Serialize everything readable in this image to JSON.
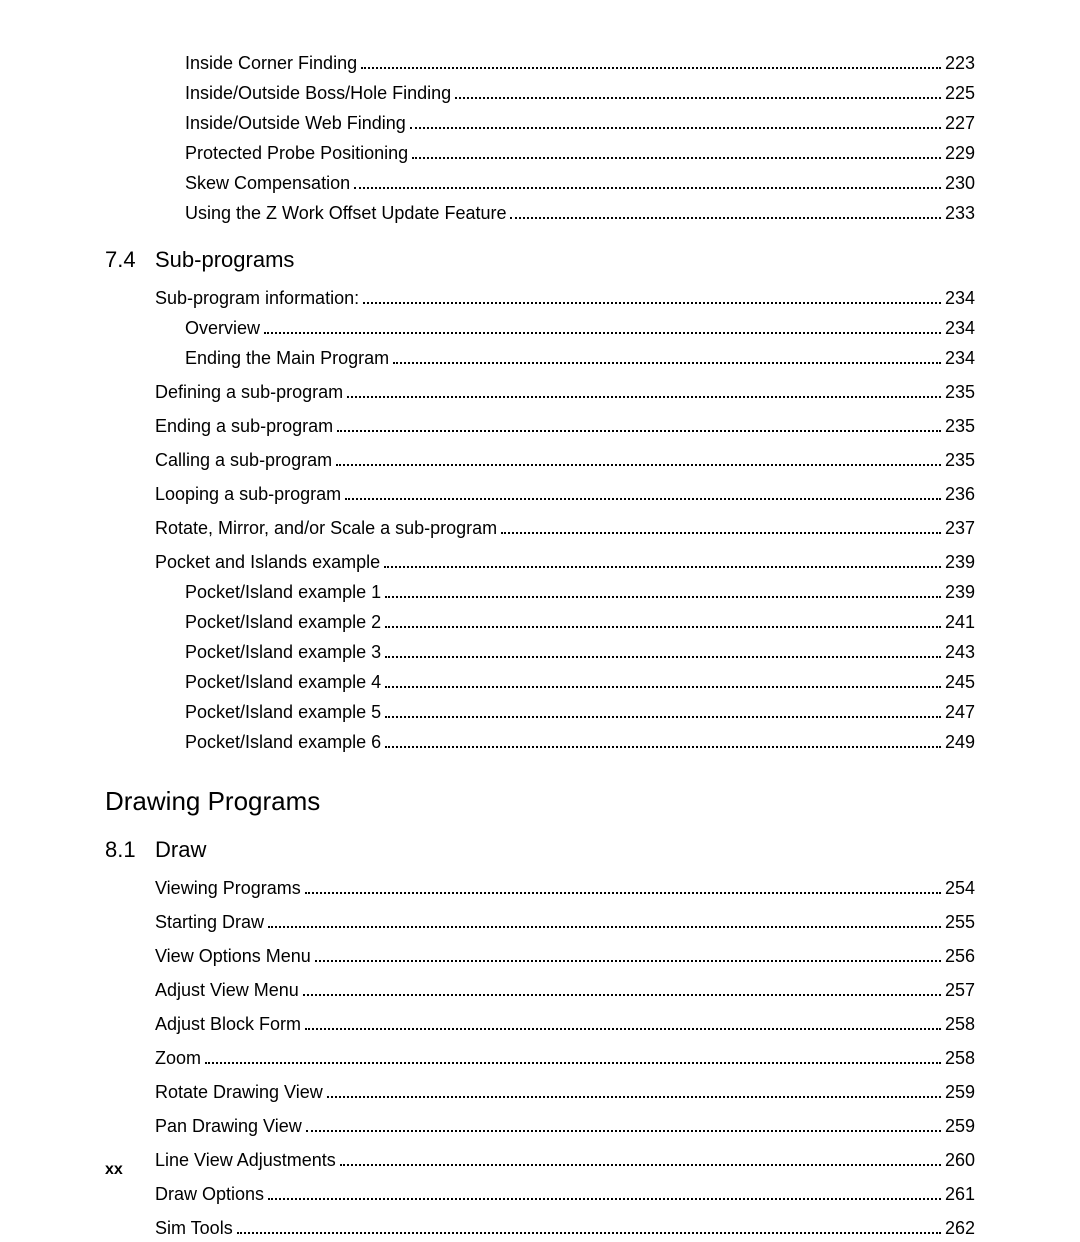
{
  "intro_entries": [
    {
      "label": "Inside Corner Finding ",
      "page": "223",
      "indent": 1,
      "trailspace": true
    },
    {
      "label": "Inside/Outside Boss/Hole Finding ",
      "page": "225",
      "indent": 1,
      "trailspace": true
    },
    {
      "label": "Inside/Outside Web Finding ",
      "page": "227",
      "indent": 1,
      "trailspace": true
    },
    {
      "label": "Protected Probe Positioning ",
      "page": "229",
      "indent": 1,
      "trailspace": true
    },
    {
      "label": "Skew Compensation ",
      "page": "230",
      "indent": 1,
      "trailspace": true
    },
    {
      "label": "Using the Z Work Offset Update Feature",
      "page": "233",
      "indent": 1
    }
  ],
  "section_74": {
    "num": "7.4",
    "title": "Sub-programs",
    "entries": [
      {
        "label": "Sub-program information:",
        "page": "234",
        "indent": 0,
        "group": true
      },
      {
        "label": "Overview ",
        "page": "234",
        "indent": 1
      },
      {
        "label": "Ending the Main Program ",
        "page": "234",
        "indent": 1
      },
      {
        "label": "Defining a sub-program ",
        "page": "235",
        "indent": 0,
        "group": true
      },
      {
        "label": "Ending a sub-program",
        "page": "235",
        "indent": 0,
        "group": true
      },
      {
        "label": "Calling a sub-program ",
        "page": "235",
        "indent": 0,
        "group": true
      },
      {
        "label": "Looping a sub-program",
        "page": "236",
        "indent": 0,
        "group": true
      },
      {
        "label": "Rotate, Mirror, and/or Scale a sub-program",
        "page": "237",
        "indent": 0,
        "group": true
      },
      {
        "label": "Pocket and Islands example ",
        "page": "239",
        "indent": 0,
        "group": true
      },
      {
        "label": "Pocket/Island example 1",
        "page": "239",
        "indent": 1
      },
      {
        "label": "Pocket/Island example 2",
        "page": "241",
        "indent": 1
      },
      {
        "label": "Pocket/Island example 3",
        "page": "243",
        "indent": 1
      },
      {
        "label": "Pocket/Island example 4",
        "page": "245",
        "indent": 1
      },
      {
        "label": "Pocket/Island example 5",
        "page": "247",
        "indent": 1
      },
      {
        "label": "Pocket/Island example 6",
        "page": "249",
        "indent": 1
      }
    ]
  },
  "chapter": "Drawing Programs",
  "section_81": {
    "num": "8.1",
    "title": "Draw",
    "entries": [
      {
        "label": "Viewing Programs ",
        "page": "254",
        "indent": 0,
        "group": true
      },
      {
        "label": "Starting Draw",
        "page": "255",
        "indent": 0,
        "group": true
      },
      {
        "label": "View Options Menu",
        "page": "256",
        "indent": 0,
        "group": true
      },
      {
        "label": "Adjust View Menu ",
        "page": "257",
        "indent": 0,
        "group": true
      },
      {
        "label": "Adjust Block Form ",
        "page": "258",
        "indent": 0,
        "group": true
      },
      {
        "label": "Zoom",
        "page": "258",
        "indent": 0,
        "group": true
      },
      {
        "label": "Rotate Drawing View",
        "page": "259",
        "indent": 0,
        "group": true
      },
      {
        "label": "Pan Drawing View ",
        "page": "259",
        "indent": 0,
        "group": true
      },
      {
        "label": "Line View Adjustments",
        "page": "260",
        "indent": 0,
        "group": true
      },
      {
        "label": "Draw Options",
        "page": "261",
        "indent": 0,
        "group": true
      },
      {
        "label": "Sim Tools",
        "page": "262",
        "indent": 0,
        "group": true
      }
    ]
  },
  "footer": "xx"
}
